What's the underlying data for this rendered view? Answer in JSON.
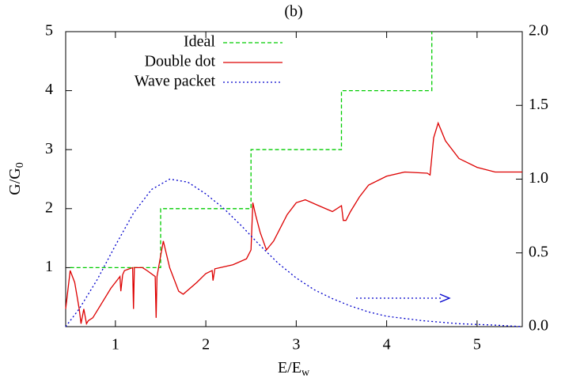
{
  "chart_data": {
    "type": "line",
    "title": "(b)",
    "xlabel": [
      "E/E",
      "w"
    ],
    "ylabel": [
      "G/G",
      "0"
    ],
    "xlim": [
      0.45,
      5.5
    ],
    "xticks": [
      1,
      2,
      3,
      4,
      5
    ],
    "ylim": [
      0,
      5
    ],
    "yticks": [
      1,
      2,
      3,
      4,
      5
    ],
    "y2lim": [
      0,
      2
    ],
    "y2ticks": [
      {
        "value": 0,
        "label": "0.0"
      },
      {
        "value": 0.5,
        "label": "0.5"
      },
      {
        "value": 1,
        "label": "1.0"
      },
      {
        "value": 1.5,
        "label": "1.5"
      },
      {
        "value": 2,
        "label": "2.0"
      }
    ],
    "legend": "top-left",
    "series": [
      {
        "name": "Ideal",
        "color": "#00cc00",
        "dash": "dashed",
        "x": [
          0.5,
          1.5,
          1.5,
          2.5,
          2.5,
          3.5,
          3.5,
          4.5,
          4.5
        ],
        "values": [
          1,
          1,
          2,
          2,
          3,
          3,
          4,
          4,
          5
        ]
      },
      {
        "name": "Double dot",
        "color": "#dd0000",
        "dash": "solid",
        "x": [
          0.45,
          0.5,
          0.55,
          0.6,
          0.62,
          0.65,
          0.68,
          0.7,
          0.75,
          0.85,
          0.95,
          1.0,
          1.05,
          1.06,
          1.08,
          1.1,
          1.19,
          1.2,
          1.21,
          1.3,
          1.35,
          1.44,
          1.45,
          1.46,
          1.5,
          1.53,
          1.6,
          1.7,
          1.75,
          1.9,
          2.0,
          2.07,
          2.08,
          2.1,
          2.3,
          2.45,
          2.5,
          2.52,
          2.55,
          2.6,
          2.67,
          2.75,
          2.9,
          3.0,
          3.1,
          3.25,
          3.4,
          3.5,
          3.52,
          3.55,
          3.6,
          3.7,
          3.8,
          4.0,
          4.2,
          4.45,
          4.48,
          4.52,
          4.57,
          4.65,
          4.8,
          5.0,
          5.2,
          5.5
        ],
        "values": [
          0.3,
          0.95,
          0.75,
          0.3,
          0.05,
          0.3,
          0.05,
          0.1,
          0.15,
          0.4,
          0.65,
          0.75,
          0.85,
          0.6,
          0.88,
          0.95,
          1.0,
          0.3,
          1.0,
          1.0,
          0.95,
          0.85,
          0.15,
          0.85,
          1.2,
          1.45,
          1.0,
          0.6,
          0.55,
          0.75,
          0.9,
          0.95,
          0.78,
          0.98,
          1.05,
          1.15,
          1.3,
          2.1,
          1.9,
          1.6,
          1.3,
          1.45,
          1.9,
          2.1,
          2.15,
          2.05,
          1.95,
          2.05,
          1.8,
          1.8,
          1.95,
          2.2,
          2.4,
          2.55,
          2.62,
          2.6,
          2.57,
          3.2,
          3.45,
          3.15,
          2.85,
          2.7,
          2.62,
          2.62
        ]
      },
      {
        "name": "Wave packet",
        "color": "#0000cc",
        "dash": "dotted",
        "axis": "y2",
        "x": [
          0.45,
          0.6,
          0.8,
          1.0,
          1.2,
          1.4,
          1.6,
          1.8,
          2.0,
          2.2,
          2.4,
          2.6,
          2.8,
          3.0,
          3.2,
          3.4,
          3.6,
          3.8,
          4.0,
          4.4,
          4.8,
          5.2,
          5.5
        ],
        "values": [
          0.0,
          0.12,
          0.32,
          0.55,
          0.77,
          0.93,
          1.0,
          0.98,
          0.9,
          0.8,
          0.68,
          0.55,
          0.43,
          0.33,
          0.25,
          0.19,
          0.14,
          0.1,
          0.07,
          0.04,
          0.02,
          0.01,
          0.0
        ]
      }
    ]
  }
}
